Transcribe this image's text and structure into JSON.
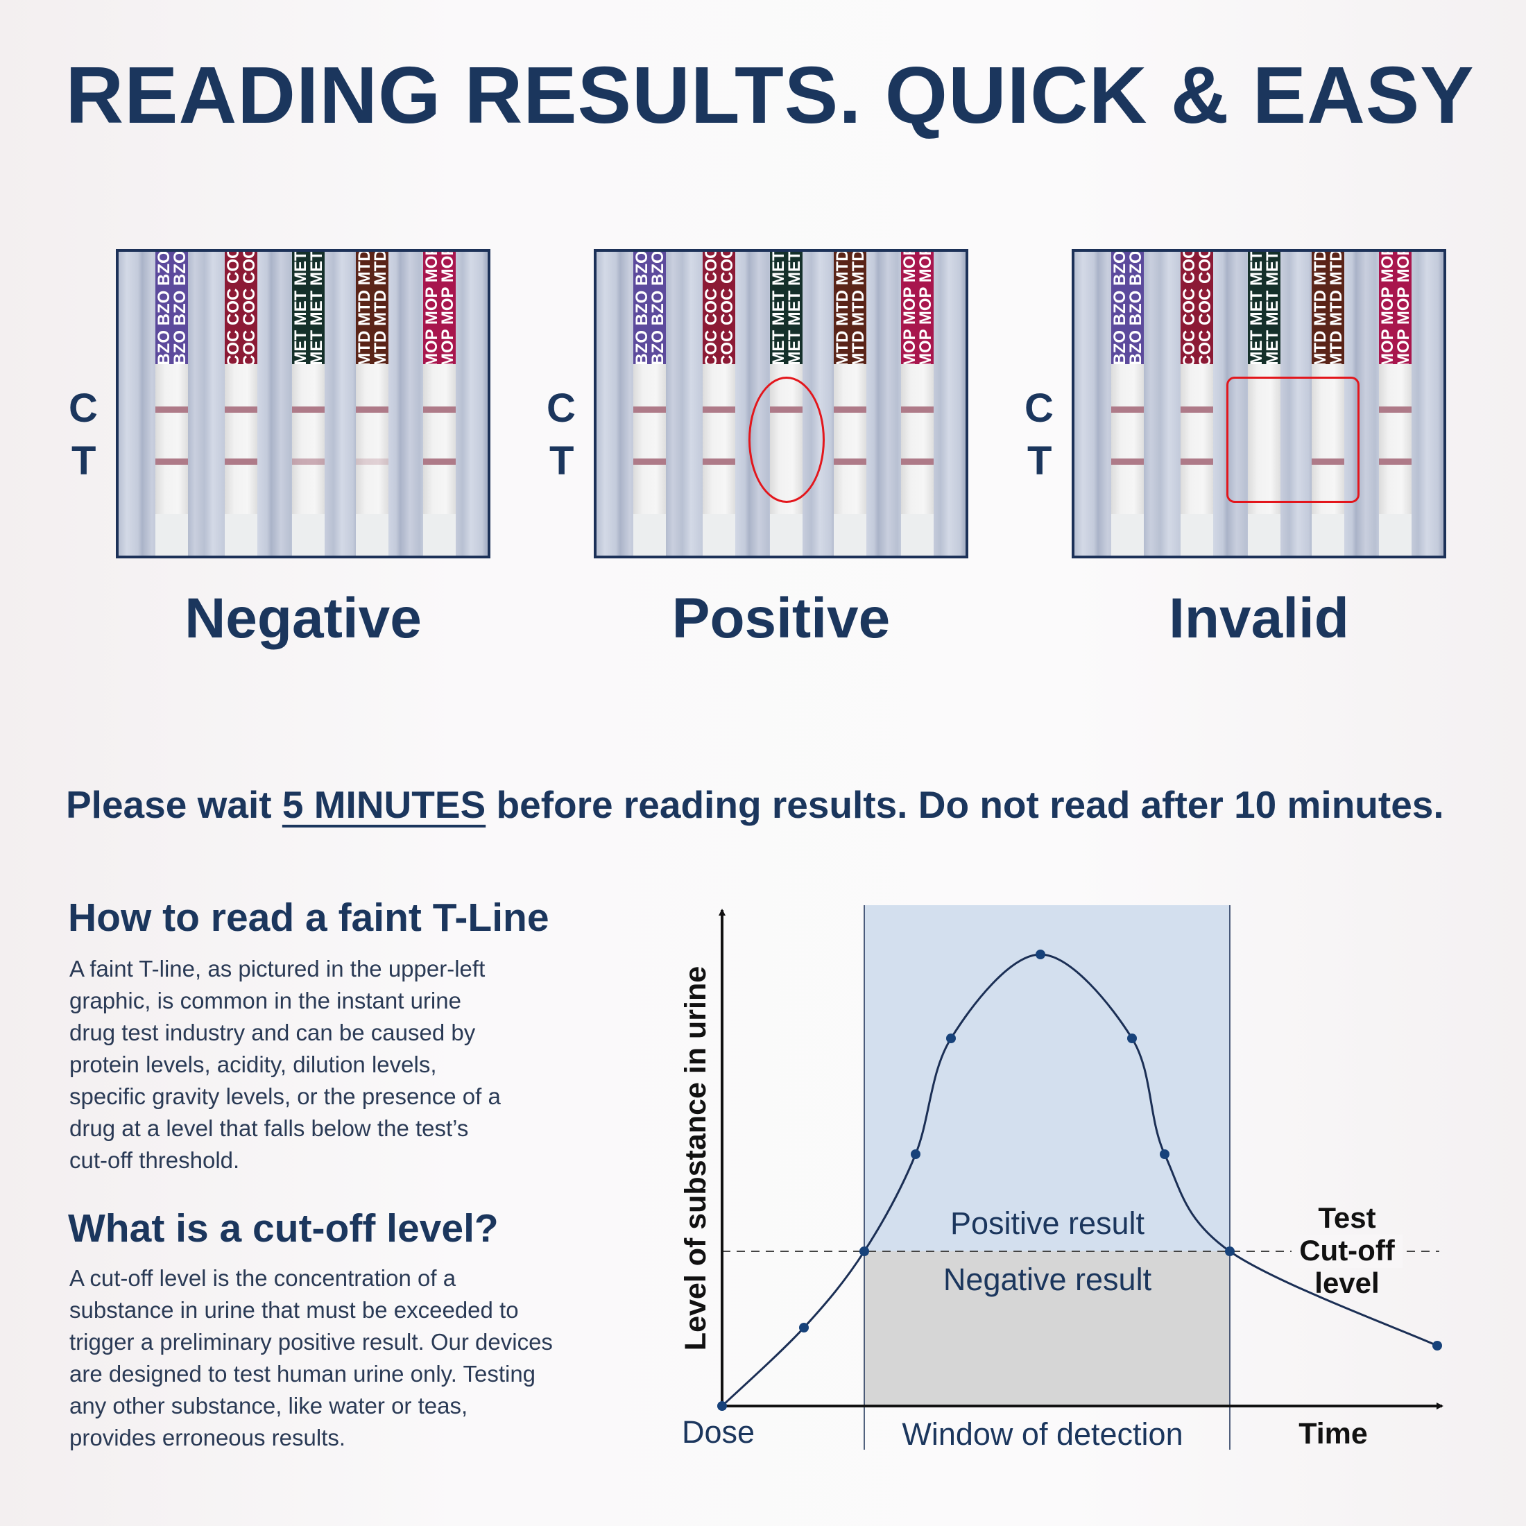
{
  "title": "READING RESULTS. QUICK & EASY",
  "strip_labels": [
    {
      "code": "BZO",
      "color": "#5c4a9c"
    },
    {
      "code": "COC",
      "color": "#8c1a35"
    },
    {
      "code": "MET",
      "color": "#15302a"
    },
    {
      "code": "MTD",
      "color": "#5a2418"
    },
    {
      "code": "MOP",
      "color": "#a8164d"
    }
  ],
  "line_color": "#ae7a88",
  "highlight_color": "#e3161c",
  "panels": [
    {
      "label": "Negative",
      "c_label": "C",
      "t_label": "T",
      "c_lines": [
        true,
        true,
        true,
        true,
        true
      ],
      "t_lines": [
        1,
        1,
        0.6,
        0.3,
        1
      ],
      "highlight": "none"
    },
    {
      "label": "Positive",
      "c_label": "C",
      "t_label": "T",
      "c_lines": [
        true,
        true,
        true,
        true,
        true
      ],
      "t_lines": [
        1,
        1,
        0,
        1,
        1
      ],
      "highlight": "ellipse"
    },
    {
      "label": "Invalid",
      "c_label": "C",
      "t_label": "T",
      "c_lines": [
        true,
        true,
        false,
        false,
        true
      ],
      "t_lines": [
        1,
        1,
        0,
        1,
        1
      ],
      "highlight": "rect"
    }
  ],
  "wait": {
    "before": "Please wait ",
    "emph": "5 MINUTES",
    "after": " before reading results. Do not read after 10 minutes."
  },
  "faint": {
    "heading": "How to read a faint T-Line",
    "lines": [
      "A faint T-line, as pictured in the upper-left",
      "graphic, is common in the instant urine",
      "drug test industry and can be caused by",
      "protein levels, acidity, dilution levels,",
      "specific gravity levels, or the presence of a",
      "drug at a level that falls below the test’s",
      "cut-off threshold."
    ]
  },
  "cutoff": {
    "heading": "What is a cut-off level?",
    "lines": [
      "A cut-off level is the concentration of a",
      "substance in urine that must be exceeded to",
      "trigger a preliminary positive result. Our devices",
      "are designed to test human urine only. Testing",
      "any other substance, like water or teas,",
      "provides erroneous results."
    ]
  },
  "chart_data": {
    "type": "line",
    "ylabel": "Level of substance in urine",
    "xlabel": "Time",
    "x_start_label": "Dose",
    "window_label": "Window of detection",
    "positive_label": "Positive result",
    "negative_label": "Negative result",
    "cutoff_label": [
      "Test",
      "Cut-off",
      "level"
    ],
    "positive_color": "#d3dfee",
    "negative_color": "#d6d6d6",
    "curve_color": "#1b2f55",
    "point_color": "#17427a"
  }
}
